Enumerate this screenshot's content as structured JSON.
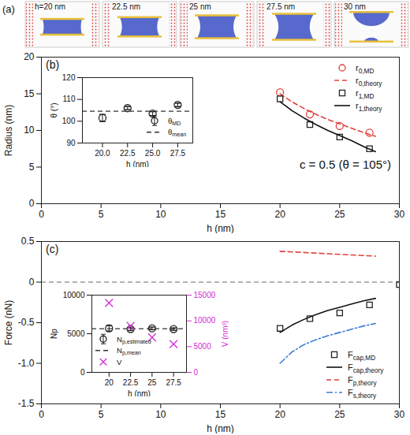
{
  "chart_data": [
    {
      "type": "snapshots",
      "panel_label": "(a)",
      "labels": [
        "h=20 nm",
        "22.5 nm",
        "25 nm",
        "27.5 nm",
        "30 nm"
      ]
    },
    {
      "type": "scatter",
      "panel_label": "(b)",
      "x_label": "h (nm)",
      "y_label": "Radius (nm)",
      "annotation": "c = 0.5 (θ = 105°)",
      "xlim": [
        0,
        30
      ],
      "xticks": [
        0,
        5,
        10,
        15,
        20,
        25,
        30
      ],
      "ylim": [
        0,
        20
      ],
      "yticks": [
        0,
        5,
        10,
        15,
        20
      ],
      "legend": "upper right",
      "series": [
        {
          "name": "r0,MD",
          "type": "scatter",
          "marker": "circle",
          "color": "#e0403c",
          "x": [
            20,
            22.5,
            25,
            27.5
          ],
          "values": [
            15.2,
            12.2,
            10.6,
            9.7
          ]
        },
        {
          "name": "r0,theory",
          "type": "line",
          "line_style": "dashed",
          "color": "#e0403c",
          "x": [
            20,
            21,
            22,
            23,
            24,
            25,
            26,
            27,
            28
          ],
          "values": [
            15.0,
            13.9,
            13.0,
            12.2,
            11.5,
            10.9,
            10.3,
            9.7,
            9.2
          ]
        },
        {
          "name": "r1,MD",
          "type": "scatter",
          "marker": "square",
          "color": "#222222",
          "x": [
            20,
            22.5,
            25,
            27.5
          ],
          "values": [
            14.3,
            10.8,
            9.1,
            7.5
          ]
        },
        {
          "name": "r1,theory",
          "type": "line",
          "line_style": "solid",
          "color": "#111111",
          "x": [
            20,
            21,
            22,
            23,
            24,
            25,
            26,
            27,
            28
          ],
          "values": [
            13.9,
            12.7,
            11.7,
            10.8,
            10.0,
            9.3,
            8.6,
            7.8,
            7.1
          ]
        }
      ],
      "inset": {
        "type": "scatter",
        "x_label": "h (nm)",
        "y_label": "θ (°)",
        "xlim": [
          18,
          29
        ],
        "xticks": [
          {
            "value": 20,
            "label": "20.0"
          },
          22.5,
          {
            "value": 25,
            "label": "25.0"
          },
          27.5
        ],
        "ylim": [
          90,
          120
        ],
        "yticks": [
          90,
          100,
          110,
          120
        ],
        "legend": "lower right",
        "series": [
          {
            "name": "θMD",
            "type": "scatter",
            "marker": "circle",
            "color": "#222222",
            "x": [
              20,
              22.5,
              25,
              27.5
            ],
            "values": [
              101.5,
              106.0,
              103.5,
              107.5
            ],
            "errors": [
              1.6,
              0.7,
              0.9,
              0.8
            ]
          },
          {
            "name": "θmean",
            "type": "hline",
            "line_style": "dashed",
            "color": "#333333",
            "value": 104.6
          }
        ]
      }
    },
    {
      "type": "scatter",
      "panel_label": "(c)",
      "x_label": "h (nm)",
      "y_label": "Force (nN)",
      "xlim": [
        0,
        30
      ],
      "xticks": [
        0,
        5,
        10,
        15,
        20,
        25,
        30
      ],
      "ylim": [
        -1.5,
        0.5
      ],
      "yticks": [
        -1.5,
        {
          "value": -1,
          "label": "-1.0"
        },
        -0.5,
        0,
        0.5
      ],
      "legend": "lower right",
      "reference_lines": [
        {
          "value": 0,
          "line_style": "dashed",
          "color": "#666666"
        }
      ],
      "series": [
        {
          "name": "Fcap,MD",
          "type": "scatter",
          "marker": "square",
          "color": "#222222",
          "x": [
            20,
            22.5,
            25,
            27.5,
            30
          ],
          "values": [
            -0.57,
            -0.45,
            -0.38,
            -0.28,
            -0.03
          ]
        },
        {
          "name": "Fcap,theory",
          "type": "line",
          "line_style": "solid",
          "color": "#111111",
          "x": [
            20,
            21,
            22,
            23,
            24,
            25,
            26,
            27,
            28
          ],
          "values": [
            -0.62,
            -0.53,
            -0.46,
            -0.4,
            -0.35,
            -0.31,
            -0.27,
            -0.23,
            -0.2
          ]
        },
        {
          "name": "Fp,theory",
          "type": "line",
          "line_style": "dashed",
          "color": "#e0403c",
          "x": [
            20,
            22,
            24,
            26,
            28
          ],
          "values": [
            0.38,
            0.365,
            0.35,
            0.335,
            0.32
          ]
        },
        {
          "name": "Fs,theory",
          "type": "line",
          "line_style": "dashdot",
          "color": "#3a7bd5",
          "x": [
            20,
            21,
            22,
            23,
            24,
            25,
            26,
            27,
            28
          ],
          "values": [
            -1.0,
            -0.86,
            -0.77,
            -0.71,
            -0.66,
            -0.62,
            -0.58,
            -0.54,
            -0.51
          ]
        }
      ],
      "inset": {
        "type": "scatter",
        "x_label": "h (nm)",
        "y_label": "Np",
        "y2_label": "V (nm³)",
        "xlim": [
          18,
          29
        ],
        "xticks": [
          20,
          22.5,
          25,
          27.5
        ],
        "ylim": [
          0,
          10000
        ],
        "yticks": [
          0,
          5000,
          10000
        ],
        "y2lim": [
          0,
          15000
        ],
        "y2ticks": [
          0,
          5000,
          10000,
          15000
        ],
        "legend": "lower left",
        "series": [
          {
            "name": "Np,estimated",
            "type": "scatter",
            "marker": "circle",
            "color": "#222222",
            "x": [
              20,
              22.5,
              25,
              27.5
            ],
            "values": [
              5700,
              5600,
              5700,
              5600
            ],
            "errors": [
              350,
              180,
              170,
              150
            ]
          },
          {
            "name": "Np,mean",
            "type": "hline",
            "line_style": "dashed",
            "color": "#333333",
            "value": 5650
          },
          {
            "name": "V",
            "type": "scatter",
            "marker": "x",
            "color": "#d42bd4",
            "axis": "y2",
            "x": [
              20,
              22.5,
              25,
              27.5
            ],
            "values": [
              13500,
              9000,
              6800,
              5500
            ]
          }
        ]
      }
    }
  ]
}
